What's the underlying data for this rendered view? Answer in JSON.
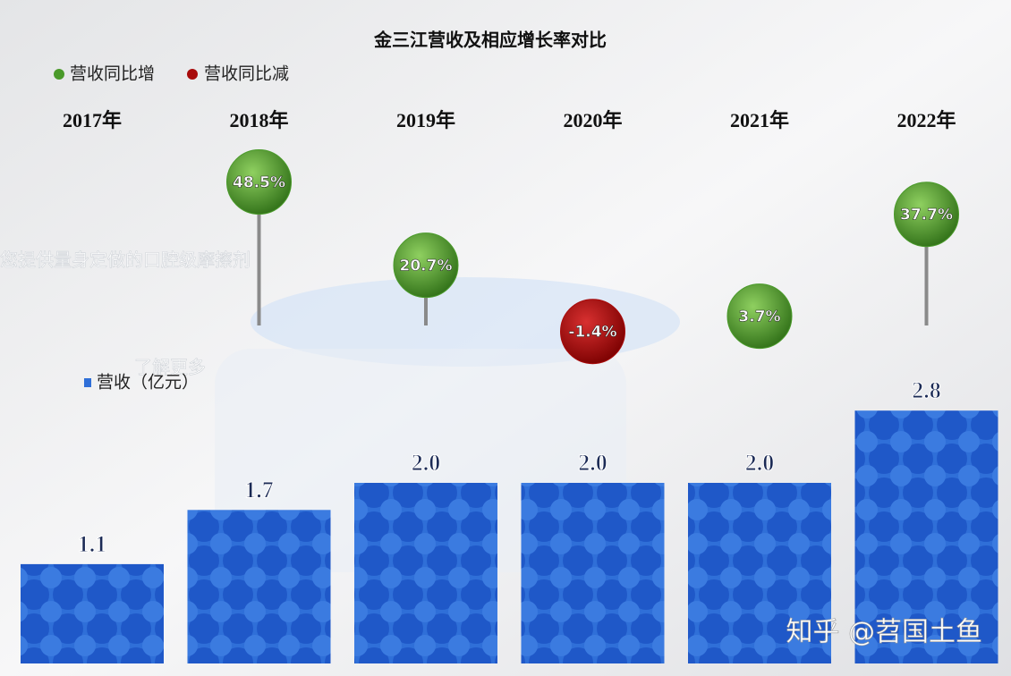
{
  "chart_data": {
    "type": "bar-bubble",
    "title": "金三江营收及相应增长率对比",
    "categories": [
      "2017年",
      "2018年",
      "2019年",
      "2020年",
      "2021年",
      "2022年"
    ],
    "series": [
      {
        "name": "营收（亿元）",
        "color": "#2f6fd8",
        "values": [
          1.1,
          1.7,
          2.0,
          2.0,
          2.0,
          2.8
        ],
        "value_labels": [
          "1.1",
          "1.7",
          "2.0",
          "2.0",
          "2.0",
          "2.8"
        ]
      },
      {
        "name": "营收同比增",
        "color": "#4a9a2a",
        "values": [
          null,
          48.5,
          20.7,
          null,
          3.7,
          37.7
        ],
        "value_labels": [
          null,
          "48.5%",
          "20.7%",
          null,
          "3.7%",
          "37.7%"
        ]
      },
      {
        "name": "营收同比减",
        "color": "#a80a0a",
        "values": [
          null,
          null,
          null,
          -1.4,
          null,
          null
        ],
        "value_labels": [
          null,
          null,
          null,
          "-1.4%",
          null,
          null
        ]
      }
    ]
  },
  "background_texts": [
    "您提供量身定做的口腔级摩擦剂",
    "了解更多"
  ],
  "watermark": "知乎 @苕国土鱼"
}
